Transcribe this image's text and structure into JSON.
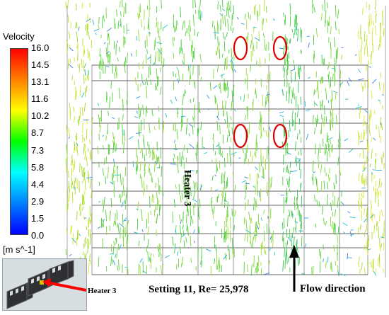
{
  "legend": {
    "title": "Velocity",
    "unit": "[m s^-1]",
    "ticks": [
      "16.0",
      "14.5",
      "13.1",
      "11.6",
      "10.2",
      "8.7",
      "7.3",
      "5.8",
      "4.4",
      "2.9",
      "1.5",
      "0.0"
    ],
    "colors": [
      "#ff0000",
      "#ff8000",
      "#ffff00",
      "#00ff00",
      "#00ffff",
      "#0080ff",
      "#0000ff"
    ]
  },
  "labels": {
    "heater_vertical": "Heater 3",
    "caption": "Setting 11,  Re= 25,978",
    "flow_direction": "Flow direction",
    "inset_heater": "Heater 3"
  },
  "annotations": {
    "highlight_color": "#dd0000",
    "highlight_count": 4
  }
}
